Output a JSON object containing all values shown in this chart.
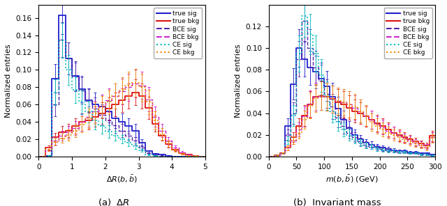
{
  "fig_width": 6.4,
  "fig_height": 2.96,
  "dpi": 100,
  "ylabel": "Normalized entries",
  "xlabel_left": "$\\Delta R(b, \\bar{b})$",
  "xlabel_right": "$m(b, \\bar{b})$ (GeV)",
  "caption_left": "(a)  $\\Delta R$",
  "caption_right": "(b)  Invariant mass",
  "colors": {
    "true_sig": "#1f1fcc",
    "true_bkg": "#dd1111",
    "bce_sig": "#5522aa",
    "bce_bkg": "#cc22cc",
    "ce_sig": "#00bbbb",
    "ce_bkg": "#ee8800"
  },
  "left": {
    "xlim": [
      0,
      5
    ],
    "ylim": [
      0,
      0.175
    ],
    "yticks": [
      0.0,
      0.02,
      0.04,
      0.06,
      0.08,
      0.1,
      0.12,
      0.14,
      0.16
    ],
    "xticks": [
      0,
      1,
      2,
      3,
      4,
      5
    ],
    "bin_edges": [
      0.0,
      0.2,
      0.4,
      0.6,
      0.8,
      1.0,
      1.2,
      1.4,
      1.6,
      1.8,
      2.0,
      2.2,
      2.4,
      2.6,
      2.8,
      3.0,
      3.2,
      3.4,
      3.6,
      3.8,
      4.0,
      4.2,
      4.4,
      4.6,
      4.8,
      5.0
    ],
    "true_sig": [
      0.0,
      0.001,
      0.09,
      0.163,
      0.113,
      0.093,
      0.078,
      0.065,
      0.06,
      0.058,
      0.052,
      0.044,
      0.04,
      0.035,
      0.03,
      0.016,
      0.006,
      0.003,
      0.002,
      0.001,
      0.0,
      0.0,
      0.0,
      0.0,
      0.0
    ],
    "true_bkg": [
      0.0,
      0.01,
      0.022,
      0.028,
      0.03,
      0.035,
      0.04,
      0.042,
      0.046,
      0.05,
      0.055,
      0.06,
      0.065,
      0.07,
      0.074,
      0.07,
      0.056,
      0.038,
      0.024,
      0.014,
      0.008,
      0.004,
      0.002,
      0.001,
      0.0
    ],
    "bce_sig": [
      0.0,
      0.001,
      0.06,
      0.135,
      0.113,
      0.092,
      0.076,
      0.064,
      0.055,
      0.048,
      0.042,
      0.036,
      0.03,
      0.024,
      0.018,
      0.01,
      0.004,
      0.002,
      0.001,
      0.0,
      0.0,
      0.0,
      0.0,
      0.0,
      0.0
    ],
    "bce_bkg": [
      0.0,
      0.008,
      0.018,
      0.024,
      0.028,
      0.033,
      0.04,
      0.046,
      0.052,
      0.058,
      0.065,
      0.07,
      0.075,
      0.08,
      0.084,
      0.082,
      0.066,
      0.046,
      0.03,
      0.018,
      0.01,
      0.005,
      0.002,
      0.001,
      0.0
    ],
    "ce_sig": [
      0.0,
      0.001,
      0.074,
      0.134,
      0.1,
      0.077,
      0.063,
      0.052,
      0.042,
      0.035,
      0.029,
      0.024,
      0.02,
      0.016,
      0.012,
      0.007,
      0.002,
      0.001,
      0.0,
      0.0,
      0.0,
      0.0,
      0.0,
      0.0,
      0.0
    ],
    "ce_bkg": [
      0.0,
      0.008,
      0.017,
      0.021,
      0.025,
      0.03,
      0.037,
      0.044,
      0.05,
      0.057,
      0.063,
      0.07,
      0.076,
      0.082,
      0.085,
      0.08,
      0.063,
      0.042,
      0.026,
      0.015,
      0.007,
      0.003,
      0.001,
      0.001,
      0.0
    ]
  },
  "right": {
    "xlim": [
      0,
      300
    ],
    "ylim": [
      0,
      0.14
    ],
    "yticks": [
      0.0,
      0.02,
      0.04,
      0.06,
      0.08,
      0.1,
      0.12
    ],
    "xticks": [
      0,
      50,
      100,
      150,
      200,
      250,
      300
    ],
    "bin_edges": [
      0,
      10,
      20,
      30,
      40,
      50,
      60,
      70,
      80,
      90,
      100,
      110,
      120,
      130,
      140,
      150,
      160,
      170,
      180,
      190,
      200,
      210,
      220,
      230,
      240,
      250,
      260,
      270,
      280,
      290,
      300
    ],
    "true_sig": [
      0.0,
      0.001,
      0.003,
      0.028,
      0.067,
      0.1,
      0.09,
      0.082,
      0.078,
      0.072,
      0.065,
      0.055,
      0.044,
      0.034,
      0.026,
      0.02,
      0.016,
      0.013,
      0.011,
      0.009,
      0.008,
      0.007,
      0.006,
      0.005,
      0.005,
      0.004,
      0.004,
      0.003,
      0.003,
      0.002
    ],
    "true_bkg": [
      0.0,
      0.001,
      0.003,
      0.008,
      0.018,
      0.028,
      0.038,
      0.048,
      0.055,
      0.056,
      0.055,
      0.053,
      0.05,
      0.048,
      0.045,
      0.042,
      0.04,
      0.037,
      0.034,
      0.031,
      0.028,
      0.025,
      0.022,
      0.02,
      0.018,
      0.016,
      0.014,
      0.012,
      0.01,
      0.019
    ],
    "bce_sig": [
      0.0,
      0.001,
      0.003,
      0.02,
      0.04,
      0.09,
      0.125,
      0.1,
      0.082,
      0.07,
      0.058,
      0.046,
      0.036,
      0.028,
      0.022,
      0.018,
      0.014,
      0.011,
      0.009,
      0.008,
      0.007,
      0.006,
      0.005,
      0.004,
      0.004,
      0.003,
      0.003,
      0.002,
      0.002,
      0.001
    ],
    "bce_bkg": [
      0.0,
      0.001,
      0.003,
      0.008,
      0.015,
      0.025,
      0.037,
      0.049,
      0.055,
      0.056,
      0.055,
      0.053,
      0.051,
      0.05,
      0.048,
      0.045,
      0.042,
      0.038,
      0.034,
      0.03,
      0.027,
      0.024,
      0.022,
      0.019,
      0.017,
      0.015,
      0.013,
      0.011,
      0.009,
      0.018
    ],
    "ce_sig": [
      0.0,
      0.001,
      0.003,
      0.015,
      0.038,
      0.095,
      0.13,
      0.113,
      0.095,
      0.075,
      0.056,
      0.042,
      0.032,
      0.025,
      0.02,
      0.016,
      0.013,
      0.01,
      0.009,
      0.007,
      0.006,
      0.005,
      0.005,
      0.004,
      0.004,
      0.003,
      0.003,
      0.002,
      0.002,
      0.001
    ],
    "ce_bkg": [
      0.0,
      0.001,
      0.003,
      0.008,
      0.015,
      0.022,
      0.034,
      0.047,
      0.054,
      0.056,
      0.055,
      0.053,
      0.051,
      0.05,
      0.048,
      0.046,
      0.042,
      0.038,
      0.032,
      0.028,
      0.025,
      0.022,
      0.02,
      0.018,
      0.016,
      0.014,
      0.012,
      0.01,
      0.008,
      0.017
    ]
  }
}
